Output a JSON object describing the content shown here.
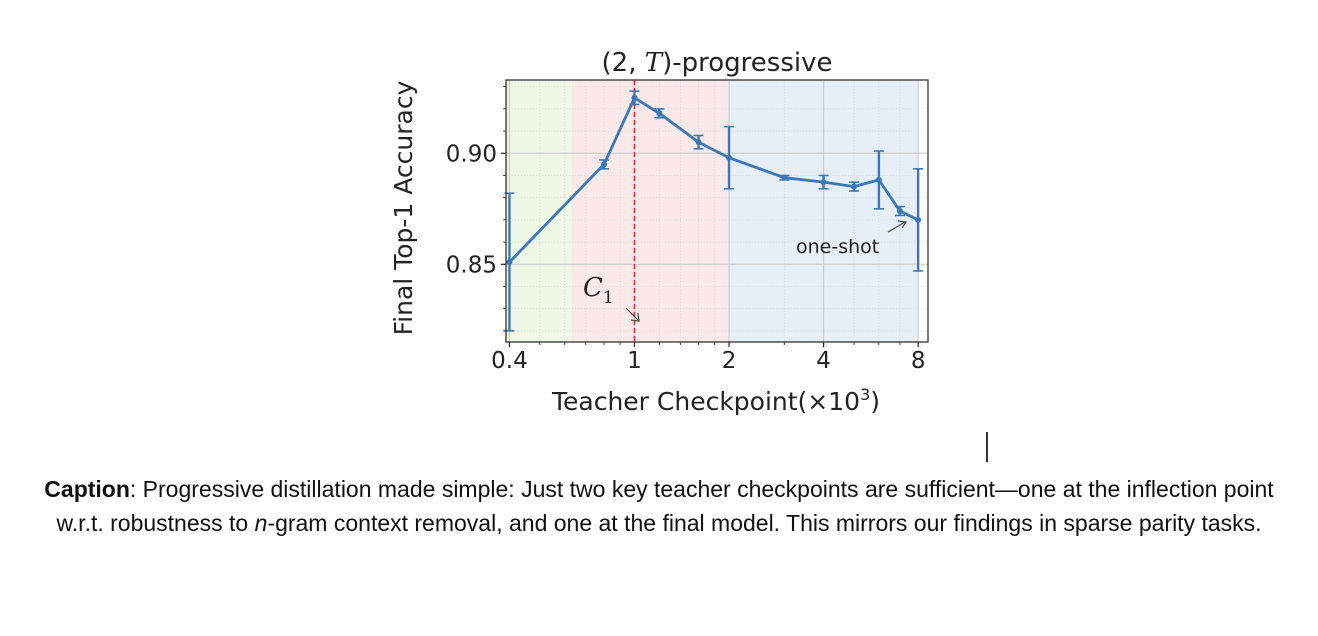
{
  "chart_data": {
    "type": "line",
    "title_parts": {
      "open": "(2, ",
      "var": "T",
      "close": ")-progressive"
    },
    "xlabel": "Teacher Checkpoint(×10",
    "xlabel_sup": "3",
    "xlabel_close": ")",
    "ylabel": "Final Top-1 Accuracy",
    "x_scale": "log2",
    "xlim": [
      0.39,
      8.6
    ],
    "ylim": [
      0.815,
      0.933
    ],
    "x_ticks": [
      0.4,
      1,
      2,
      4,
      8
    ],
    "x_tick_labels": [
      "0.4",
      "1",
      "2",
      "4",
      "8"
    ],
    "y_ticks": [
      0.85,
      0.9
    ],
    "y_tick_labels": [
      "0.85",
      "0.90"
    ],
    "grid": true,
    "series": [
      {
        "x": [
          0.4,
          0.8,
          1.0,
          1.2,
          1.6,
          2.0,
          3.0,
          4.0,
          5.0,
          6.0,
          7.0,
          8.0
        ],
        "y": [
          0.851,
          0.895,
          0.925,
          0.918,
          0.905,
          0.898,
          0.889,
          0.887,
          0.885,
          0.888,
          0.874,
          0.87
        ],
        "err": [
          0.031,
          0.002,
          0.003,
          0.002,
          0.003,
          0.014,
          0.001,
          0.003,
          0.002,
          0.013,
          0.002,
          0.023
        ],
        "color": "#3b78b7"
      }
    ],
    "regions": [
      {
        "x_from": 0.39,
        "x_to": 0.63,
        "color": "#eef7e6"
      },
      {
        "x_from": 0.63,
        "x_to": 2.0,
        "color": "#fbe8e8"
      },
      {
        "x_from": 2.0,
        "x_to": 8.0,
        "color": "#e6eef7"
      }
    ],
    "vline": {
      "x": 1.0,
      "color": "#e03030"
    },
    "annotations": [
      {
        "text": "C",
        "sub": "1",
        "x": 1.0,
        "y": 0.818
      },
      {
        "text": "one-shot",
        "x": 8.0,
        "y": 0.87
      }
    ]
  },
  "caption": {
    "label": "Caption",
    "text_1": ": Progressive distillation made simple: Just two key teacher checkpoints are sufficient—one at the inflection point w.r.t. robustness to ",
    "text_italic": "n",
    "text_2": "-gram context removal, and one at the final model. This mirrors our findings in sparse parity tasks."
  }
}
